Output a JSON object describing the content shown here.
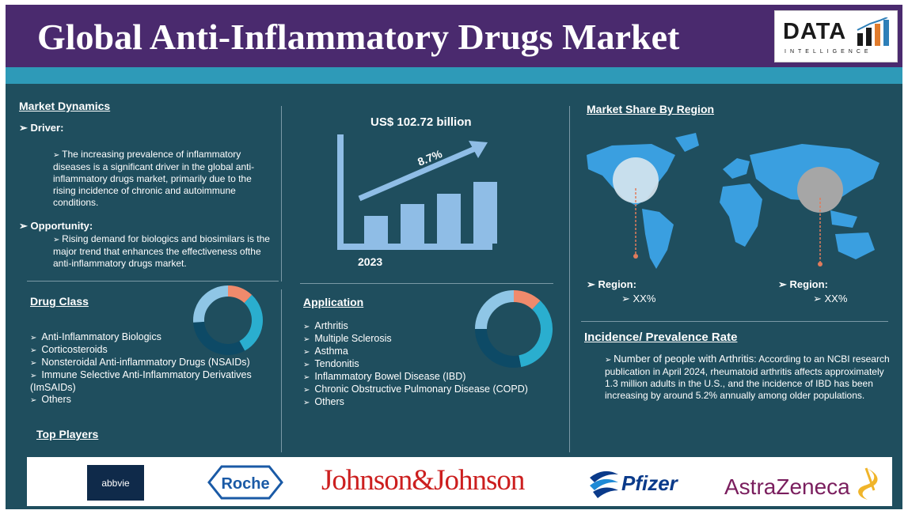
{
  "header": {
    "title": "Global Anti-Inflammatory Drugs Market",
    "logo_word": "DATA",
    "logo_sub": "INTELLIGENCE"
  },
  "market_dynamics": {
    "heading": "Market Dynamics",
    "driver_label": "Driver:",
    "driver_text": "The increasing prevalence of inflammatory diseases is a significant driver in the global anti-inflammatory drugs market, primarily due to the rising incidence of chronic and autoimmune conditions.",
    "opportunity_label": "Opportunity:",
    "opportunity_text": "Rising demand for biologics and biosimilars is the major trend that enhances the effectiveness ofthe anti-inflammatory drugs market."
  },
  "growth_chart": {
    "value_label": "US$ 102.72 billion",
    "cagr": "8.7%",
    "year": "2023",
    "bar_levels": [
      0.35,
      0.5,
      0.63,
      0.78
    ]
  },
  "region": {
    "heading": "Market Share By Region",
    "left_label": "Region:",
    "left_value": "XX%",
    "right_label": "Region:",
    "right_value": "XX%"
  },
  "drug_class": {
    "heading": "Drug Class",
    "items": [
      "Anti-Inflammatory Biologics",
      "Corticosteroids",
      "Nonsteroidal Anti-inflammatory Drugs (NSAIDs)",
      "Immune Selective Anti-Inflammatory Derivatives (ImSAIDs)",
      "Others"
    ],
    "donut_fractions": [
      0.12,
      0.3,
      0.32,
      0.26
    ],
    "donut_colors": [
      "#f08a6c",
      "#2aaecf",
      "#0d4a66",
      "#8fc6e6"
    ]
  },
  "application": {
    "heading": "Application",
    "items": [
      "Arthritis",
      "Multiple Sclerosis",
      "Asthma",
      "Tendonitis",
      "Inflammatory Bowel Disease (IBD)",
      "Chronic Obstructive Pulmonary Disease (COPD)",
      "Others"
    ],
    "donut_fractions": [
      0.12,
      0.35,
      0.28,
      0.25
    ],
    "donut_colors": [
      "#f08a6c",
      "#2aaecf",
      "#0d4a66",
      "#8fc6e6"
    ]
  },
  "incidence": {
    "heading": "Incidence/ Prevalence Rate",
    "lead": "Number of people with Arthritis",
    "text": ": According to an NCBI research publication in April 2024, rheumatoid arthritis affects approximately 1.3 million adults in the U.S., and the incidence of IBD has been increasing by around 5.2% annually among older populations."
  },
  "top_players": {
    "heading": "Top Players",
    "names": [
      "abbvie",
      "Roche",
      "Johnson&Johnson",
      "Pfizer",
      "AstraZeneca"
    ]
  },
  "colors": {
    "background": "#1f4e5e",
    "title_bar": "#4a2a6e",
    "accent_teal": "#2e9ab8",
    "chart_blue": "#8fbde6"
  }
}
